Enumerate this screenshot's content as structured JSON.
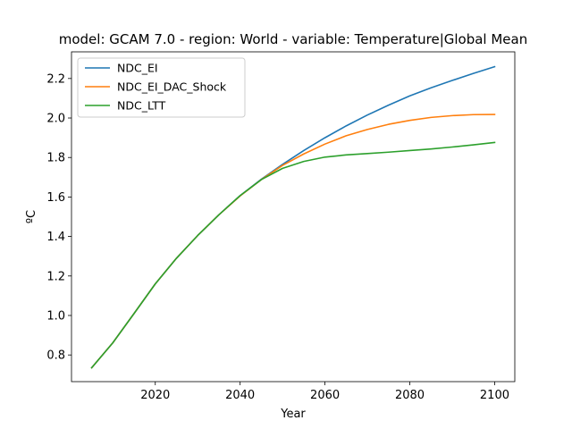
{
  "chart_data": {
    "type": "line",
    "title": "model: GCAM 7.0 - region: World - variable: Temperature|Global Mean",
    "xlabel": "Year",
    "ylabel": "ºC",
    "xlim": [
      2000.25,
      2104.75
    ],
    "ylim": [
      0.665,
      2.335
    ],
    "xticks": [
      2020,
      2040,
      2060,
      2080,
      2100
    ],
    "yticks": [
      0.8,
      1.0,
      1.2,
      1.4,
      1.6,
      1.8,
      2.0,
      2.2
    ],
    "ytick_labels": [
      "0.8",
      "1.0",
      "1.2",
      "1.4",
      "1.6",
      "1.8",
      "2.0",
      "2.2"
    ],
    "grid": false,
    "legend_position": "upper-left",
    "x": [
      2005,
      2010,
      2015,
      2020,
      2025,
      2030,
      2035,
      2040,
      2045,
      2050,
      2055,
      2060,
      2065,
      2070,
      2075,
      2080,
      2085,
      2090,
      2095,
      2100
    ],
    "series": [
      {
        "name": "NDC_EI",
        "color": "#1f77b4",
        "values": [
          0.735,
          0.862,
          1.01,
          1.16,
          1.29,
          1.405,
          1.51,
          1.607,
          1.69,
          1.765,
          1.835,
          1.9,
          1.96,
          2.015,
          2.065,
          2.112,
          2.153,
          2.19,
          2.226,
          2.26
        ]
      },
      {
        "name": "NDC_EI_DAC_Shock",
        "color": "#ff7f0e",
        "values": [
          0.735,
          0.862,
          1.01,
          1.16,
          1.29,
          1.405,
          1.51,
          1.605,
          1.688,
          1.76,
          1.818,
          1.868,
          1.91,
          1.942,
          1.968,
          1.988,
          2.003,
          2.012,
          2.017,
          2.018
        ]
      },
      {
        "name": "NDC_LTT",
        "color": "#2ca02c",
        "values": [
          0.735,
          0.862,
          1.01,
          1.16,
          1.29,
          1.405,
          1.51,
          1.607,
          1.688,
          1.745,
          1.78,
          1.802,
          1.813,
          1.82,
          1.827,
          1.835,
          1.843,
          1.853,
          1.864,
          1.876
        ]
      }
    ]
  }
}
